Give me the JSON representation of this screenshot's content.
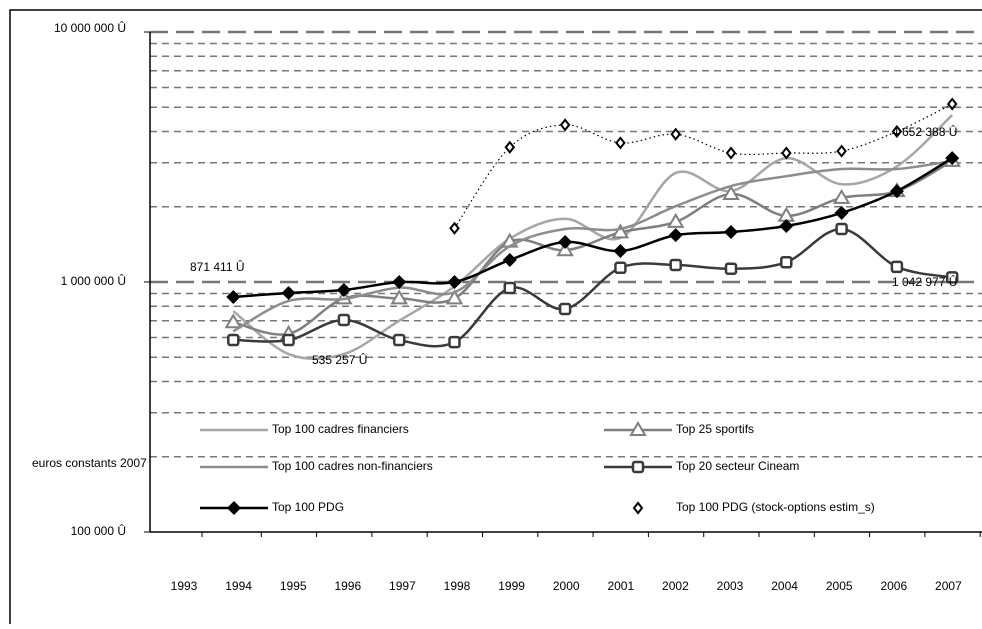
{
  "chart_data": {
    "type": "line",
    "log_scale": true,
    "grid": true,
    "categories": [
      "1993",
      "1994",
      "1995",
      "1996",
      "1997",
      "1998",
      "1999",
      "2000",
      "2001",
      "2002",
      "2003",
      "2004",
      "2005",
      "2006",
      "2007"
    ],
    "ylim": [
      100000,
      10000000
    ],
    "yticks": [
      {
        "value": 10000000,
        "label": "10 000 000 Û"
      },
      {
        "value": 1000000,
        "label": "1 000 000 Û"
      },
      {
        "value": 100000,
        "label": "100 000 Û"
      }
    ],
    "series": [
      {
        "name": "Top 100 cadres financiers",
        "color": "#a6a6a6",
        "marker": "none",
        "values": [
          null,
          765000,
          515000,
          515000,
          700000,
          960000,
          1490000,
          1790000,
          1500000,
          2730000,
          2310000,
          3130000,
          2460000,
          2900000,
          4652388
        ]
      },
      {
        "name": "Top 25 sportifs",
        "color": "#7f7f7f",
        "marker": "triangle",
        "values": [
          null,
          690000,
          620000,
          860000,
          860000,
          860000,
          1450000,
          1340000,
          1580000,
          1740000,
          2250000,
          1840000,
          2170000,
          2310000,
          3050000
        ]
      },
      {
        "name": "Top 100 cadres non-financiers",
        "color": "#8c8c8c",
        "marker": "none",
        "values": [
          null,
          635000,
          840000,
          855000,
          950000,
          910000,
          1390000,
          1630000,
          1630000,
          2010000,
          2420000,
          2650000,
          2830000,
          2830000,
          3050000
        ]
      },
      {
        "name": "Top 20 secteur Cineam",
        "color": "#3a3a3a",
        "marker": "square",
        "values": [
          null,
          586000,
          586000,
          705000,
          586000,
          575000,
          946000,
          780000,
          1140000,
          1170000,
          1130000,
          1200000,
          1630000,
          1150000,
          1042977
        ]
      },
      {
        "name": "Top 100 PDG",
        "color": "#000000",
        "marker": "diamond",
        "values": [
          null,
          871411,
          904000,
          929000,
          1000000,
          1000000,
          1225000,
          1445000,
          1330000,
          1540000,
          1585000,
          1675000,
          1890000,
          2310000,
          3130000
        ]
      },
      {
        "name": "Top 100 PDG (stock-options estim_s)",
        "color": "#000000",
        "marker": "open-diamond",
        "dotted": true,
        "values": [
          null,
          null,
          null,
          null,
          null,
          1640000,
          3460000,
          4250000,
          3600000,
          3900000,
          3280000,
          3280000,
          3340000,
          4000000,
          5150000
        ]
      }
    ],
    "annotations": [
      "871 411 Û",
      "535 257 Û",
      "4 652 388 Û",
      "1 042 977 Û",
      "euros constants 2007"
    ]
  }
}
